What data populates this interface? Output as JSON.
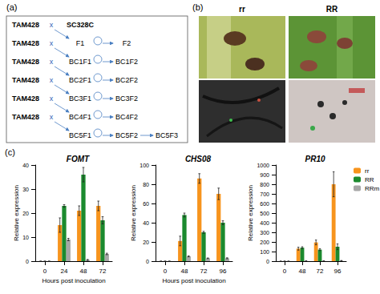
{
  "panel_labels": [
    "(a)",
    "(b)",
    "(c)"
  ],
  "diagram": {
    "cross_symbol": "x",
    "rows": [
      {
        "left": "TAM428",
        "right": "SC328C",
        "selfed": []
      },
      {
        "left": "TAM428",
        "right": "F1",
        "selfed": [
          "F2"
        ]
      },
      {
        "left": "TAM428",
        "right": "BC1F1",
        "selfed": [
          "BC1F2"
        ]
      },
      {
        "left": "TAM428",
        "right": "BC2F1",
        "selfed": [
          "BC2F2"
        ]
      },
      {
        "left": "TAM428",
        "right": "BC3F1",
        "selfed": [
          "BC3F2"
        ]
      },
      {
        "left": "TAM428",
        "right": "BC4F1",
        "selfed": [
          "BC4F2"
        ]
      },
      {
        "left": null,
        "right": "BC5F1",
        "selfed": [
          "BC5F2",
          "BC5F3"
        ]
      }
    ]
  },
  "photos": {
    "columns": [
      "rr",
      "RR"
    ]
  },
  "chart_data": [
    {
      "type": "bar",
      "title": "FOMT",
      "x_label": "Hours post inoculation",
      "y_label": "Relative expression",
      "categories": [
        0,
        24,
        48,
        72
      ],
      "ylim": [
        0,
        40
      ],
      "yticks": [
        0,
        10,
        20,
        30,
        40
      ],
      "grid": false,
      "series": [
        {
          "name": "rr",
          "color": "#f7941d",
          "values": [
            0,
            15,
            21,
            23
          ],
          "errors": [
            0,
            3,
            2,
            2
          ]
        },
        {
          "name": "RR",
          "color": "#1b8a2e",
          "values": [
            0,
            23,
            36,
            17
          ],
          "errors": [
            0,
            0.5,
            3,
            1.5
          ]
        },
        {
          "name": "RRm",
          "color": "#a6a6a6",
          "values": [
            0,
            9,
            0.5,
            3
          ],
          "errors": [
            0,
            0.5,
            0.2,
            0.3
          ]
        }
      ]
    },
    {
      "type": "bar",
      "title": "CHS08",
      "x_label": "Hours post inoculation",
      "y_label": "Relative expression",
      "categories": [
        0,
        48,
        72,
        96
      ],
      "ylim": [
        0,
        100
      ],
      "yticks": [
        0,
        20,
        40,
        60,
        80,
        100
      ],
      "grid": false,
      "series": [
        {
          "name": "rr",
          "color": "#f7941d",
          "values": [
            0,
            21,
            86,
            70
          ],
          "errors": [
            0,
            5,
            5,
            6
          ]
        },
        {
          "name": "RR",
          "color": "#1b8a2e",
          "values": [
            0,
            48,
            30,
            40
          ],
          "errors": [
            0,
            2,
            1,
            2
          ]
        },
        {
          "name": "RRm",
          "color": "#a6a6a6",
          "values": [
            0,
            5,
            3,
            3
          ],
          "errors": [
            0,
            0.5,
            0.3,
            0.5
          ]
        }
      ]
    },
    {
      "type": "bar",
      "title": "PR10",
      "y_label": "Relative expression",
      "categories": [
        0,
        48,
        72,
        96
      ],
      "ylim": [
        0,
        1000
      ],
      "yticks": [
        0,
        100,
        200,
        300,
        400,
        500,
        600,
        700,
        800,
        900,
        1000
      ],
      "grid": false,
      "legend": "top-right",
      "series": [
        {
          "name": "rr",
          "color": "#f7941d",
          "values": [
            0,
            130,
            195,
            800
          ],
          "errors": [
            0,
            15,
            25,
            130
          ]
        },
        {
          "name": "RR",
          "color": "#1b8a2e",
          "values": [
            0,
            140,
            120,
            150
          ],
          "errors": [
            0,
            10,
            10,
            30
          ]
        },
        {
          "name": "RRm",
          "color": "#a6a6a6",
          "values": [
            0,
            2,
            2,
            5
          ],
          "errors": [
            0,
            1,
            1,
            2
          ]
        }
      ]
    }
  ]
}
